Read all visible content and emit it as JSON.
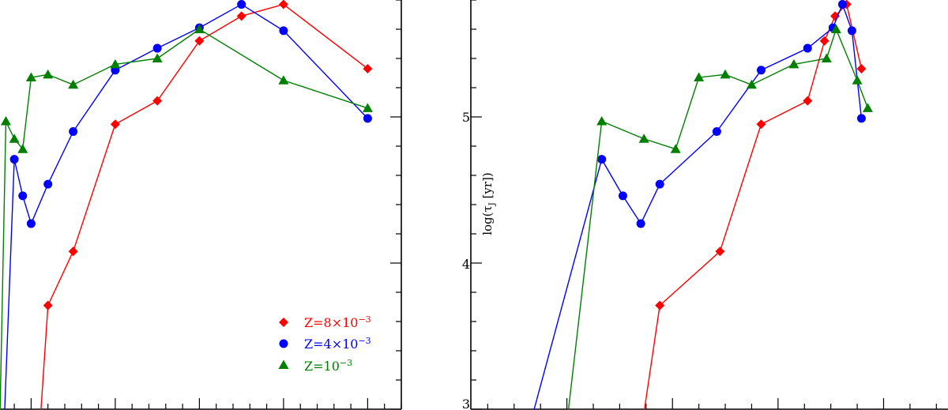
{
  "chart_data": [
    {
      "type": "line",
      "panel": "left",
      "title": "",
      "xlabel": "",
      "ylabel": "",
      "xlim": [
        -0.37,
        4.4
      ],
      "ylim": [
        3.0,
        5.8
      ],
      "x_major_ticks": [
        0,
        1,
        2,
        3,
        4
      ],
      "x_minor_step": 0.2,
      "y_major_ticks": [
        3,
        4,
        5
      ],
      "y_minor_step": 0.2,
      "y_tick_labels_shown": false,
      "legend": {
        "placement": "bottom-right"
      },
      "series": [
        {
          "name": "Z=8×10^-3",
          "label_main": "Z=8×10",
          "label_exp": "−3",
          "color": "#ff0000",
          "marker": "diamond",
          "x": [
            0.1,
            0.2,
            0.5,
            1.0,
            1.5,
            2.0,
            2.5,
            3.0,
            4.0
          ],
          "y": [
            2.85,
            3.71,
            4.08,
            4.95,
            5.11,
            5.52,
            5.69,
            5.77,
            5.33
          ],
          "marked": [
            false,
            true,
            true,
            true,
            true,
            true,
            true,
            true,
            true
          ]
        },
        {
          "name": "Z=4×10^-3",
          "label_main": "Z=4×10",
          "label_exp": "−3",
          "color": "#0000ff",
          "marker": "circle",
          "x": [
            -0.35,
            -0.2,
            -0.1,
            0.0,
            0.2,
            0.5,
            1.0,
            1.5,
            2.0,
            2.5,
            3.0,
            4.0
          ],
          "y": [
            2.46,
            4.71,
            4.46,
            4.27,
            4.54,
            4.9,
            5.32,
            5.47,
            5.61,
            5.77,
            5.59,
            4.99
          ],
          "marked": [
            false,
            true,
            true,
            true,
            true,
            true,
            true,
            true,
            true,
            true,
            true,
            true
          ]
        },
        {
          "name": "Z=10^-3",
          "label_main": "Z=10",
          "label_exp": "−3",
          "color": "#007f00",
          "marker": "triangle",
          "x": [
            -0.4,
            -0.3,
            -0.2,
            -0.1,
            0.0,
            0.2,
            0.5,
            1.0,
            1.5,
            2.0,
            3.0,
            4.0
          ],
          "y": [
            2.1,
            4.97,
            4.85,
            4.78,
            5.27,
            5.29,
            5.22,
            5.36,
            5.4,
            5.6,
            5.25,
            5.06
          ],
          "marked": [
            false,
            true,
            true,
            true,
            true,
            true,
            true,
            true,
            true,
            true,
            true,
            true
          ]
        }
      ]
    },
    {
      "type": "line",
      "panel": "right",
      "title": "",
      "xlabel": "",
      "ylabel_main": "log(τ",
      "ylabel_sub": "J",
      "ylabel_end": " [yr])",
      "xlim": [
        0.09,
        4.61
      ],
      "ylim": [
        3.0,
        5.8
      ],
      "x_major_ticks": [
        1,
        2,
        3,
        4
      ],
      "x_minor_step": 0.25,
      "y_major_ticks": [
        3,
        4,
        5
      ],
      "y_tick_labels": [
        "3",
        "4",
        "5"
      ],
      "y_minor_step": 0.2,
      "series": [
        {
          "color": "#ff0000",
          "marker": "diamond",
          "x": [
            1.69,
            1.88,
            2.45,
            2.84,
            3.28,
            3.44,
            3.54,
            3.65,
            3.79
          ],
          "y": [
            2.78,
            3.71,
            4.08,
            4.95,
            5.11,
            5.52,
            5.69,
            5.77,
            5.33
          ],
          "marked": [
            false,
            true,
            true,
            true,
            true,
            true,
            true,
            true,
            true
          ]
        },
        {
          "color": "#0000ff",
          "marker": "circle",
          "x": [
            0.57,
            1.33,
            1.53,
            1.7,
            1.88,
            2.42,
            2.84,
            3.28,
            3.52,
            3.61,
            3.7,
            3.79
          ],
          "y": [
            2.68,
            4.71,
            4.46,
            4.27,
            4.54,
            4.9,
            5.32,
            5.47,
            5.61,
            5.77,
            5.59,
            4.99
          ],
          "marked": [
            false,
            true,
            true,
            true,
            true,
            true,
            true,
            true,
            true,
            true,
            true,
            true
          ]
        },
        {
          "color": "#007f00",
          "marker": "triangle",
          "x": [
            0.98,
            1.33,
            1.73,
            2.03,
            2.25,
            2.5,
            2.75,
            3.15,
            3.46,
            3.55,
            3.75,
            3.85
          ],
          "y": [
            2.78,
            4.97,
            4.85,
            4.78,
            5.27,
            5.29,
            5.22,
            5.36,
            5.4,
            5.6,
            5.25,
            5.06
          ],
          "marked": [
            false,
            true,
            true,
            true,
            true,
            true,
            true,
            true,
            true,
            true,
            true,
            true
          ]
        }
      ]
    }
  ]
}
